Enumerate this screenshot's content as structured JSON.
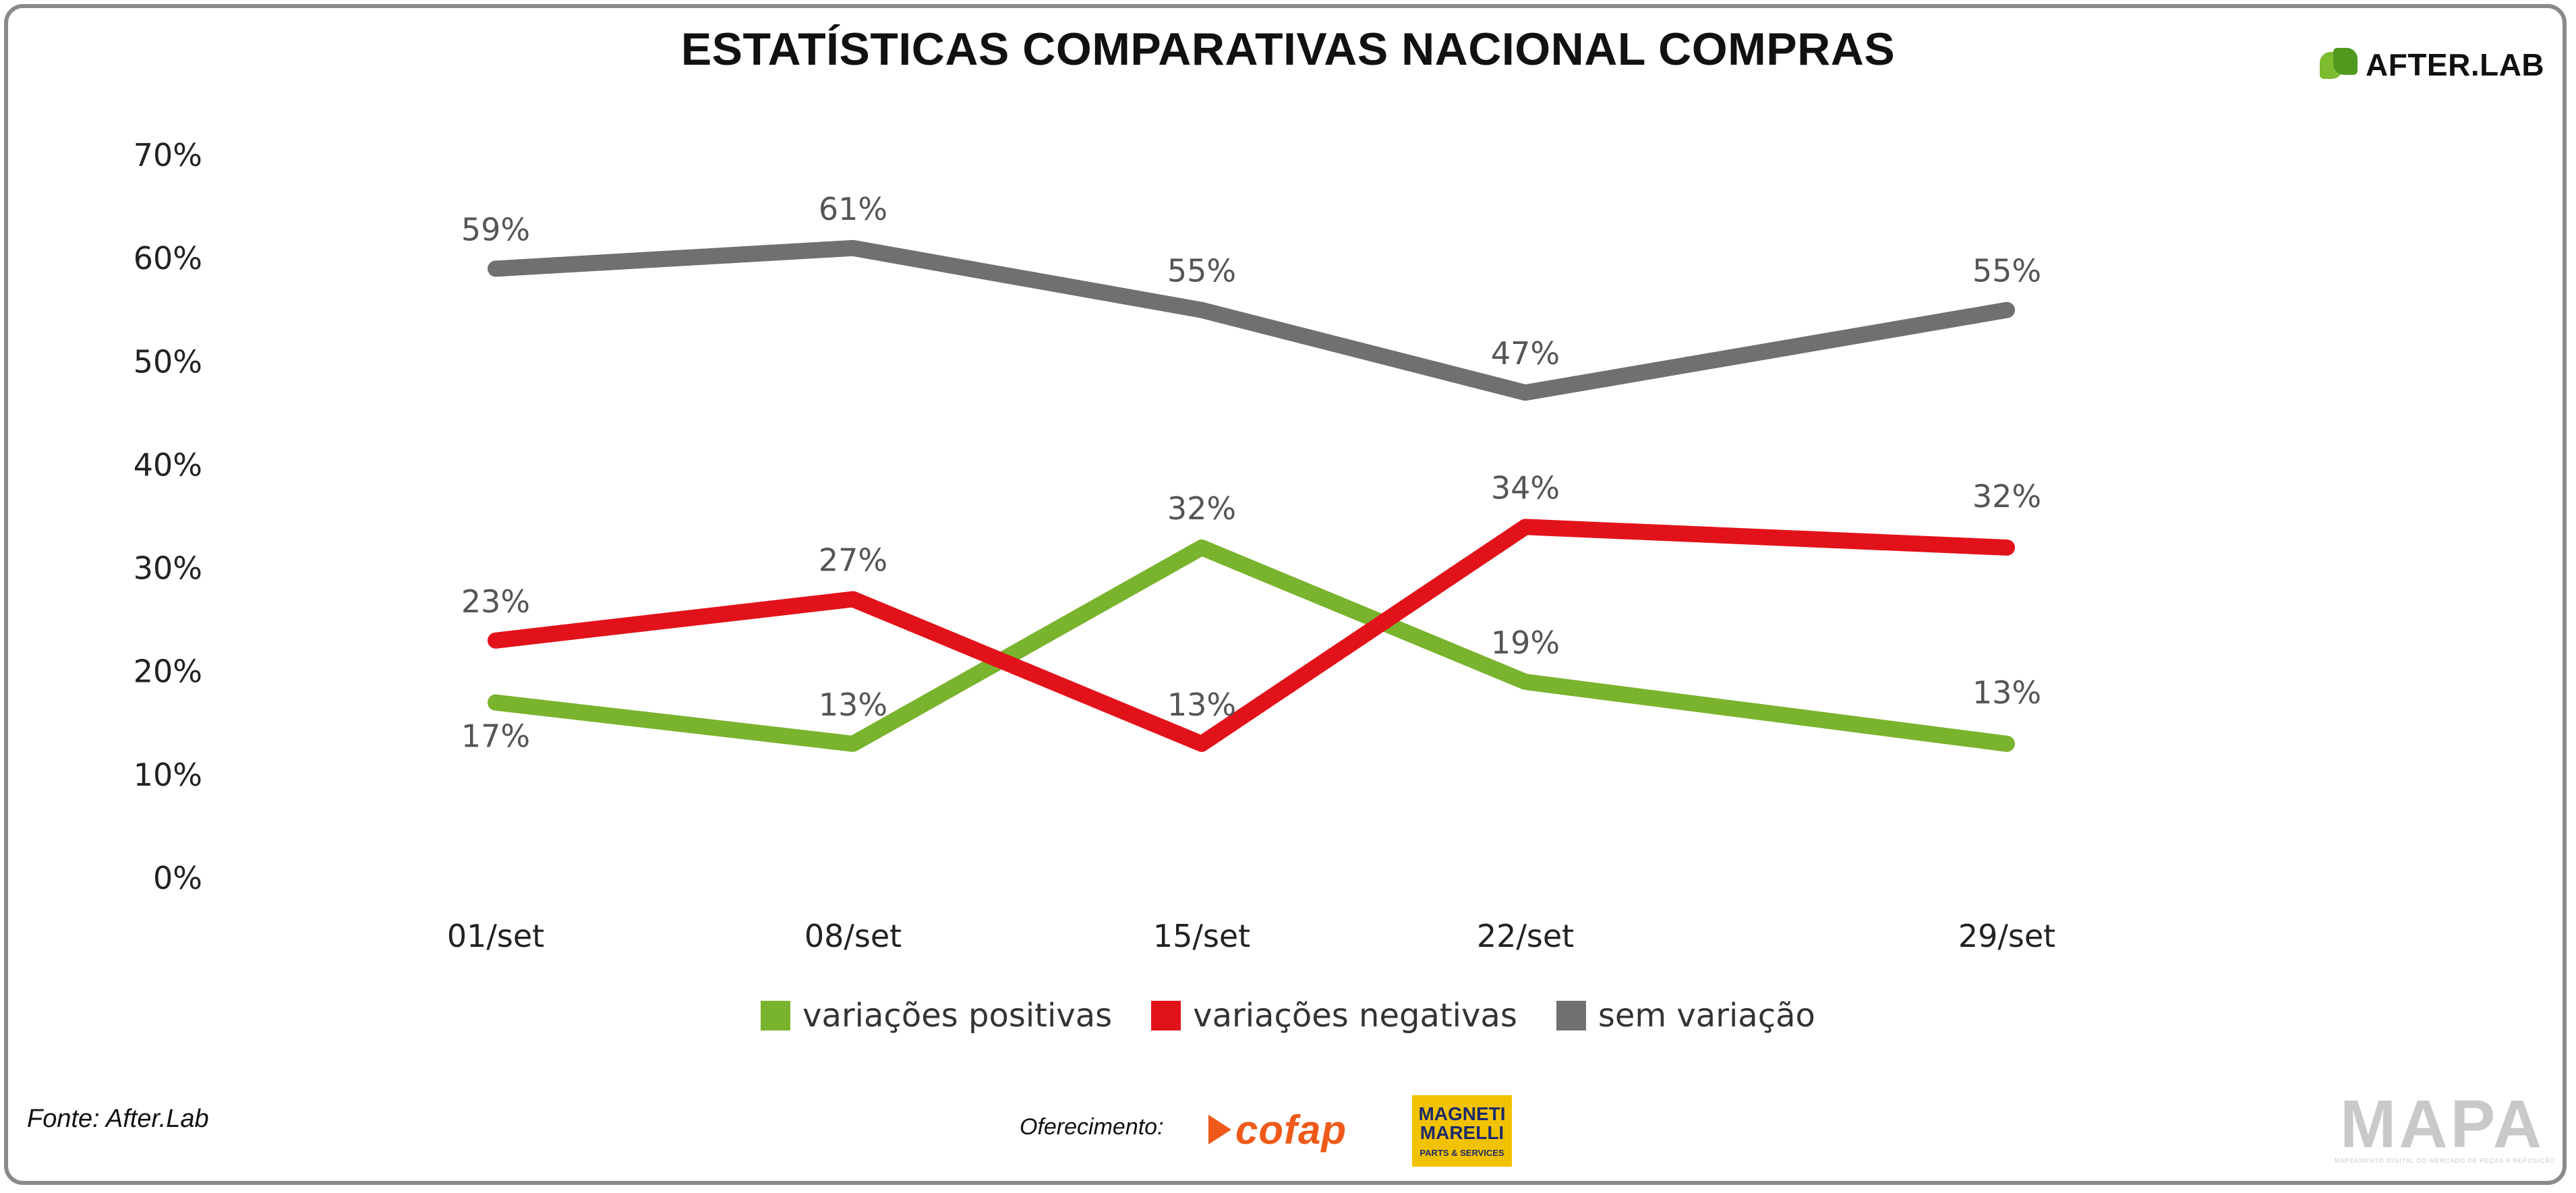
{
  "header": {
    "title": "ESTATÍSTICAS COMPARATIVAS NACIONAL COMPRAS",
    "brand": "AFTER.LAB"
  },
  "footer": {
    "source": "Fonte: After.Lab",
    "offer_label": "Oferecimento:",
    "sponsor_cofap": "cofap",
    "sponsor_magneti_line1": "MAGNETI",
    "sponsor_magneti_line2": "MARELLI",
    "sponsor_magneti_tag": "PARTS & SERVICES",
    "mapa": "MAPA",
    "mapa_tagline": "MAPEAMENTO DIGITAL DO MERCADO DE PEÇAS E REPOSIÇÃO"
  },
  "colors": {
    "positive": "#7ab32e",
    "negative": "#e2121a",
    "neutral": "#707070"
  },
  "chart_data": {
    "type": "line",
    "title": "ESTATÍSTICAS COMPARATIVAS NACIONAL COMPRAS",
    "xlabel": "",
    "ylabel": "",
    "categories": [
      "01/set",
      "08/set",
      "15/set",
      "22/set",
      "29/set"
    ],
    "ylim": [
      0,
      70
    ],
    "yticks": [
      "0%",
      "10%",
      "20%",
      "30%",
      "40%",
      "50%",
      "60%",
      "70%"
    ],
    "grid": false,
    "legend_position": "bottom",
    "series": [
      {
        "name": "variações positivas",
        "color": "#7ab32e",
        "values": [
          17,
          13,
          32,
          19,
          13
        ],
        "labels": [
          "17%",
          "13%",
          "32%",
          "19%",
          "13%"
        ]
      },
      {
        "name": "variações negativas",
        "color": "#e2121a",
        "values": [
          23,
          27,
          13,
          34,
          32
        ],
        "labels": [
          "23%",
          "27%",
          "13%",
          "34%",
          "32%"
        ]
      },
      {
        "name": "sem variação",
        "color": "#707070",
        "values": [
          59,
          61,
          55,
          47,
          55
        ],
        "labels": [
          "59%",
          "61%",
          "55%",
          "47%",
          "55%"
        ]
      }
    ]
  }
}
